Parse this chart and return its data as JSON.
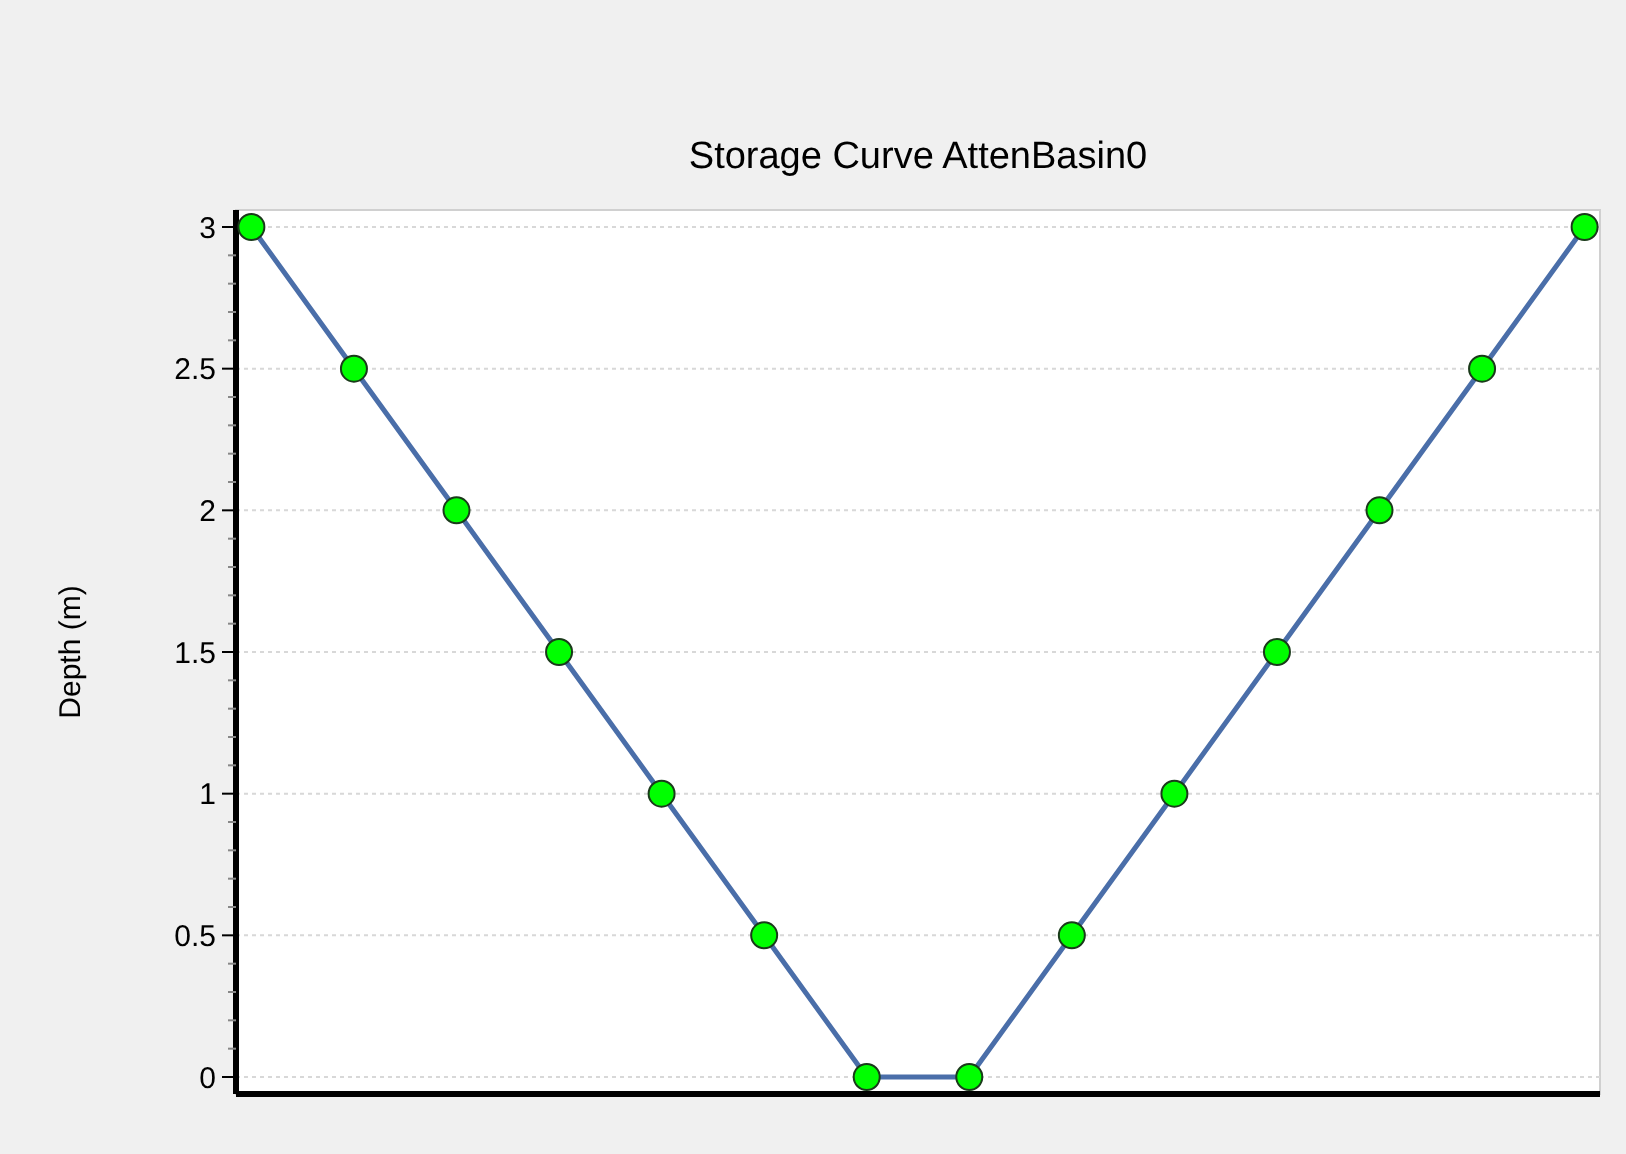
{
  "chart_data": {
    "type": "line",
    "title": "Storage Curve AttenBasin0",
    "ylabel": "Depth (m)",
    "categories": [
      null,
      null,
      null,
      null,
      null,
      null,
      null,
      null,
      null,
      null,
      null,
      null,
      null,
      null
    ],
    "series": [
      {
        "color": "#4a6ea9",
        "values": [
          3,
          2.5,
          2,
          1.5,
          1,
          0.5,
          0,
          0,
          0.5,
          1,
          1.5,
          2,
          2.5,
          3
        ]
      }
    ],
    "ylim": [
      -0.06,
      3.06
    ],
    "yticks": [
      0,
      0.5,
      1,
      1.5,
      2,
      2.5,
      3
    ],
    "grid": "y",
    "marker": "circle",
    "line_style": "solid"
  }
}
